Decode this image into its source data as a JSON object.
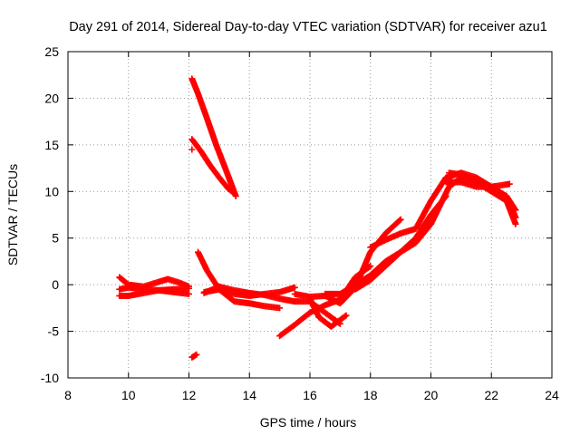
{
  "chart_data": {
    "type": "scatter",
    "title": "Day 291 of 2014, Sidereal Day-to-day VTEC variation (SDTVAR) for receiver azu1",
    "xlabel": "GPS time / hours",
    "ylabel": "SDTVAR / TECUs",
    "xlim": [
      8,
      24
    ],
    "ylim": [
      -10,
      25
    ],
    "xticks": [
      8,
      10,
      12,
      14,
      16,
      18,
      20,
      22,
      24
    ],
    "yticks": [
      -10,
      -5,
      0,
      5,
      10,
      15,
      20,
      25
    ],
    "grid": true,
    "marker": "+",
    "color": "#ff0000",
    "series": [
      {
        "name": "trace-1",
        "points": [
          [
            9.7,
            0.8
          ],
          [
            10.0,
            0.0
          ],
          [
            10.5,
            -0.2
          ],
          [
            11.0,
            0.3
          ],
          [
            11.3,
            0.6
          ],
          [
            11.7,
            0.2
          ],
          [
            12.0,
            -0.2
          ]
        ]
      },
      {
        "name": "trace-2",
        "points": [
          [
            9.7,
            -0.5
          ],
          [
            10.0,
            -0.3
          ],
          [
            10.5,
            -0.5
          ],
          [
            11.0,
            -0.6
          ],
          [
            11.5,
            -0.8
          ],
          [
            12.0,
            -1.0
          ]
        ]
      },
      {
        "name": "trace-3",
        "points": [
          [
            9.7,
            -1.2
          ],
          [
            10.0,
            -1.2
          ],
          [
            10.5,
            -0.9
          ],
          [
            11.0,
            -0.6
          ],
          [
            11.5,
            -0.5
          ],
          [
            12.0,
            -0.4
          ]
        ]
      },
      {
        "name": "trace-4",
        "points": [
          [
            12.1,
            22.1
          ],
          [
            12.3,
            20.5
          ],
          [
            12.6,
            17.8
          ],
          [
            12.9,
            15.0
          ],
          [
            13.2,
            12.5
          ],
          [
            13.55,
            9.5
          ]
        ]
      },
      {
        "name": "trace-5",
        "points": [
          [
            12.1,
            15.6
          ],
          [
            12.4,
            14.3
          ],
          [
            12.7,
            12.8
          ],
          [
            13.0,
            11.5
          ],
          [
            13.3,
            10.3
          ],
          [
            13.5,
            9.8
          ]
        ]
      },
      {
        "name": "trace-6",
        "points": [
          [
            12.1,
            14.5
          ]
        ]
      },
      {
        "name": "trace-7",
        "points": [
          [
            12.1,
            -7.8
          ],
          [
            12.25,
            -7.5
          ]
        ]
      },
      {
        "name": "trace-8",
        "points": [
          [
            12.3,
            3.5
          ],
          [
            12.6,
            1.5
          ],
          [
            13.0,
            -0.5
          ],
          [
            13.5,
            -1.8
          ],
          [
            14.0,
            -2.0
          ],
          [
            14.5,
            -2.3
          ],
          [
            15.0,
            -2.5
          ]
        ]
      },
      {
        "name": "trace-9",
        "points": [
          [
            12.5,
            -0.8
          ],
          [
            13.0,
            -0.5
          ],
          [
            13.5,
            -1.0
          ],
          [
            14.0,
            -1.2
          ],
          [
            14.5,
            -1.0
          ],
          [
            15.0,
            -0.8
          ],
          [
            15.5,
            -0.3
          ]
        ]
      },
      {
        "name": "trace-10",
        "points": [
          [
            12.5,
            -0.9
          ],
          [
            13.0,
            -0.2
          ],
          [
            13.5,
            -0.6
          ],
          [
            14.0,
            -0.9
          ],
          [
            14.5,
            -1.1
          ],
          [
            15.0,
            -1.5
          ],
          [
            15.5,
            -1.8
          ],
          [
            16.0,
            -1.8
          ],
          [
            16.5,
            -3.0
          ],
          [
            17.0,
            -4.2
          ]
        ]
      },
      {
        "name": "trace-11",
        "points": [
          [
            15.0,
            -5.5
          ],
          [
            15.5,
            -4.3
          ],
          [
            16.0,
            -3.0
          ],
          [
            16.5,
            -2.2
          ],
          [
            17.0,
            -1.6
          ],
          [
            17.5,
            0.8
          ],
          [
            18.0,
            2.0
          ]
        ]
      },
      {
        "name": "trace-12",
        "points": [
          [
            15.5,
            -1.0
          ],
          [
            16.0,
            -1.3
          ],
          [
            16.5,
            -1.2
          ],
          [
            17.0,
            -2.0
          ],
          [
            17.5,
            -0.3
          ],
          [
            18.0,
            3.5
          ],
          [
            18.5,
            5.5
          ],
          [
            19.0,
            7.0
          ]
        ]
      },
      {
        "name": "trace-13",
        "points": [
          [
            16.0,
            -1.5
          ],
          [
            16.3,
            -3.5
          ],
          [
            16.7,
            -4.5
          ],
          [
            17.2,
            -3.3
          ]
        ]
      },
      {
        "name": "trace-14",
        "points": [
          [
            16.5,
            -1.0
          ],
          [
            17.0,
            -1.0
          ],
          [
            17.5,
            0.0
          ],
          [
            18.0,
            1.0
          ],
          [
            18.5,
            2.5
          ],
          [
            19.0,
            3.5
          ],
          [
            19.5,
            5.0
          ],
          [
            20.0,
            7.5
          ],
          [
            20.5,
            9.5
          ]
        ]
      },
      {
        "name": "trace-15",
        "points": [
          [
            17.5,
            -0.5
          ],
          [
            18.0,
            0.5
          ],
          [
            18.5,
            2.0
          ],
          [
            19.0,
            3.5
          ],
          [
            19.5,
            4.5
          ],
          [
            20.0,
            6.5
          ],
          [
            20.3,
            8.5
          ],
          [
            20.6,
            10.5
          ],
          [
            21.0,
            11.5
          ],
          [
            21.5,
            11.0
          ],
          [
            22.0,
            10.0
          ],
          [
            22.5,
            9.0
          ],
          [
            22.8,
            6.5
          ]
        ]
      },
      {
        "name": "trace-16",
        "points": [
          [
            18.0,
            4.0
          ],
          [
            18.5,
            4.8
          ],
          [
            19.0,
            5.5
          ],
          [
            19.5,
            6.0
          ],
          [
            20.0,
            9.0
          ],
          [
            20.5,
            11.5
          ],
          [
            21.0,
            12.0
          ],
          [
            21.5,
            11.5
          ],
          [
            22.0,
            10.5
          ],
          [
            22.5,
            9.5
          ],
          [
            22.8,
            8.0
          ]
        ]
      },
      {
        "name": "trace-17",
        "points": [
          [
            20.5,
            11.0
          ],
          [
            21.0,
            11.0
          ],
          [
            21.5,
            10.5
          ],
          [
            22.0,
            10.5
          ],
          [
            22.6,
            10.8
          ]
        ]
      },
      {
        "name": "trace-18",
        "points": [
          [
            20.6,
            12.0
          ],
          [
            21.0,
            11.8
          ],
          [
            21.5,
            11.0
          ],
          [
            22.0,
            10.3
          ],
          [
            22.5,
            9.5
          ],
          [
            22.8,
            7.2
          ]
        ]
      }
    ]
  }
}
